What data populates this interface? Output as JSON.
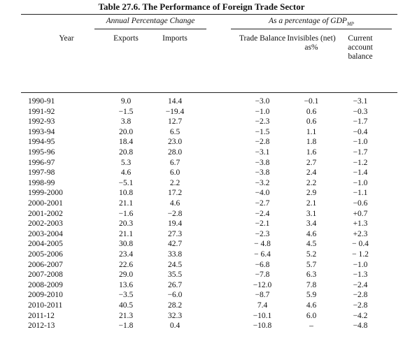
{
  "title": "Table 27.6. The Performance of Foreign Trade Sector",
  "groups": {
    "annual": "Annual Percentage Change",
    "gdp": "As a percentage of GDP",
    "gdp_sub": "MP"
  },
  "columns": [
    "Year",
    "Exports",
    "Imports",
    "Trade Balance",
    "Invisibles (net) as%",
    "Current account balance"
  ],
  "rows": [
    [
      "1990-91",
      "9.0",
      "14.4",
      "−3.0",
      "−0.1",
      "−3.1"
    ],
    [
      "1991-92",
      "−1.5",
      "−19.4",
      "−1.0",
      "0.6",
      "−0.3"
    ],
    [
      "1992-93",
      "3.8",
      "12.7",
      "−2.3",
      "0.6",
      "−1.7"
    ],
    [
      "1993-94",
      "20.0",
      "6.5",
      "−1.5",
      "1.1",
      "−0.4"
    ],
    [
      "1994-95",
      "18.4",
      "23.0",
      "−2.8",
      "1.8",
      "−1.0"
    ],
    [
      "1995-96",
      "20.8",
      "28.0",
      "−3.1",
      "1.6",
      "−1.7"
    ],
    [
      "1996-97",
      "5.3",
      "6.7",
      "−3.8",
      "2.7",
      "−1.2"
    ],
    [
      "1997-98",
      "4.6",
      "6.0",
      "−3.8",
      "2.4",
      "−1.4"
    ],
    [
      "1998-99",
      "−5.1",
      "2.2",
      "−3.2",
      "2.2",
      "−1.0"
    ],
    [
      "1999-2000",
      "10.8",
      "17.2",
      "−4.0",
      "2.9",
      "−1.1"
    ],
    [
      "2000-2001",
      "21.1",
      "4.6",
      "−2.7",
      "2.1",
      "−0.6"
    ],
    [
      "2001-2002",
      "−1.6",
      "−2.8",
      "−2.4",
      "3.1",
      "+0.7"
    ],
    [
      "2002-2003",
      "20.3",
      "19.4",
      "−2.1",
      "3.4",
      "+1.3"
    ],
    [
      "2003-2004",
      "21.1",
      "27.3",
      "−2.3",
      "4.6",
      "+2.3"
    ],
    [
      "2004-2005",
      "30.8",
      "42.7",
      "− 4.8",
      "4.5",
      "− 0.4"
    ],
    [
      "2005-2006",
      "23.4",
      "33.8",
      "− 6.4",
      "5.2",
      "− 1.2"
    ],
    [
      "2006-2007",
      "22.6",
      "24.5",
      "−6.8",
      "5.7",
      "−1.0"
    ],
    [
      "2007-2008",
      "29.0",
      "35.5",
      "−7.8",
      "6.3",
      "−1.3"
    ],
    [
      "2008-2009",
      "13.6",
      "26.7",
      "−12.0",
      "7.8",
      "−2.4"
    ],
    [
      "2009-2010",
      "−3.5",
      "−6.0",
      "−8.7",
      "5.9",
      "−2.8"
    ],
    [
      "2010-2011",
      "40.5",
      "28.2",
      "7.4",
      "4.6",
      "−2.8"
    ],
    [
      "2011-12",
      "21.3",
      "32.3",
      "−10.1",
      "6.0",
      "−4.2"
    ],
    [
      "2012-13",
      "−1.8",
      "0.4",
      "−10.8",
      "–",
      "−4.8"
    ]
  ]
}
